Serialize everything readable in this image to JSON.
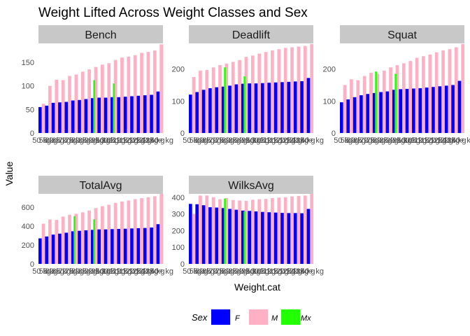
{
  "chart_data": {
    "type": "bar",
    "title": "Weight Lifted Across Weight Classes and Sex",
    "xlabel": "Weight.cat",
    "ylabel": "Value",
    "categories": [
      "50 kg",
      "55 kg",
      "60 kg",
      "65 kg",
      "70 kg",
      "75 kg",
      "80 kg",
      "85 kg",
      "90 kg",
      "95 kg",
      "100 kg",
      "105 kg",
      "110 kg",
      "115 kg",
      "120 kg",
      "125 kg",
      "130 kg",
      "135 kg",
      "140+ kg"
    ],
    "legend": {
      "title": "Sex",
      "position": "bottom",
      "entries": [
        {
          "key": "F",
          "label": "F",
          "color": "#0000FF"
        },
        {
          "key": "M",
          "label": "M",
          "color": "#FFB0C4"
        },
        {
          "key": "Mx",
          "label": "Mx",
          "color": "#22FF00"
        }
      ]
    },
    "panels": [
      {
        "name": "Bench",
        "ylim": [
          0,
          190
        ],
        "yticks": [
          0,
          50,
          100,
          150
        ],
        "series": {
          "F": [
            55,
            58,
            64,
            65,
            66,
            69,
            70,
            72,
            74,
            75,
            75,
            76,
            76,
            77,
            78,
            79,
            80,
            81,
            88
          ],
          "M": [
            62,
            100,
            113,
            112,
            121,
            124,
            130,
            135,
            140,
            145,
            148,
            155,
            160,
            162,
            165,
            170,
            172,
            175,
            188
          ],
          "Mx": {
            "105 kg": 105,
            "90 kg": 112
          }
        }
      },
      {
        "name": "Deadlift",
        "ylim": [
          0,
          280
        ],
        "yticks": [
          0,
          100,
          200
        ],
        "series": {
          "F": [
            120,
            128,
            135,
            140,
            143,
            145,
            148,
            152,
            154,
            155,
            155,
            156,
            157,
            158,
            159,
            160,
            161,
            162,
            172
          ],
          "M": [
            175,
            195,
            197,
            205,
            212,
            217,
            222,
            228,
            238,
            242,
            248,
            253,
            258,
            262,
            266,
            268,
            270,
            272,
            278
          ],
          "Mx": {
            "75 kg": 205,
            "90 kg": 177
          }
        }
      },
      {
        "name": "Squat",
        "ylim": [
          0,
          280
        ],
        "yticks": [
          0,
          100,
          200
        ],
        "series": {
          "F": [
            96,
            105,
            112,
            118,
            122,
            125,
            128,
            130,
            135,
            137,
            138,
            139,
            140,
            142,
            144,
            146,
            148,
            150,
            163
          ],
          "M": [
            150,
            168,
            165,
            178,
            188,
            185,
            195,
            205,
            212,
            218,
            225,
            235,
            240,
            245,
            252,
            258,
            262,
            268,
            278
          ],
          "Mx": {
            "75 kg": 192,
            "90 kg": 185
          }
        }
      },
      {
        "name": "TotalAvg",
        "ylim": [
          0,
          740
        ],
        "yticks": [
          0,
          200,
          400,
          600
        ],
        "series": {
          "F": [
            270,
            290,
            310,
            320,
            330,
            345,
            350,
            355,
            360,
            365,
            365,
            368,
            370,
            372,
            375,
            378,
            380,
            385,
            420
          ],
          "M": [
            425,
            470,
            465,
            500,
            520,
            530,
            545,
            565,
            590,
            610,
            625,
            645,
            660,
            670,
            685,
            695,
            705,
            715,
            740
          ],
          "Mx": {
            "75 kg": 505,
            "90 kg": 472
          }
        }
      },
      {
        "name": "WilksAvg",
        "ylim": [
          0,
          420
        ],
        "yticks": [
          0,
          100,
          200,
          300,
          400
        ],
        "series": {
          "F": [
            360,
            358,
            352,
            340,
            338,
            335,
            330,
            325,
            320,
            318,
            315,
            312,
            310,
            308,
            306,
            305,
            305,
            304,
            330
          ],
          "M": [
            300,
            410,
            410,
            400,
            388,
            395,
            383,
            380,
            378,
            385,
            388,
            390,
            395,
            398,
            400,
            405,
            408,
            410,
            420
          ],
          "Mx": {
            "75 kg": 392,
            "90 kg": 315
          }
        }
      }
    ]
  }
}
